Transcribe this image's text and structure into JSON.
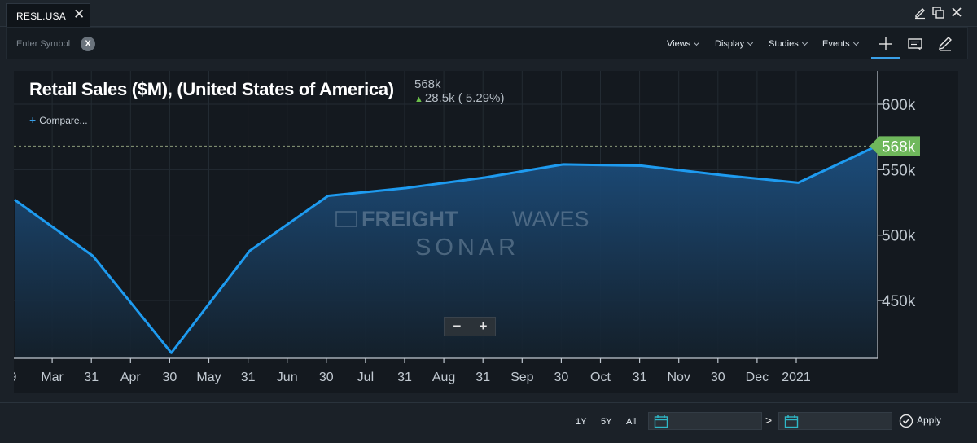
{
  "tab": {
    "label": "RESL.USA",
    "close": "✕"
  },
  "toolbar": {
    "symbol_placeholder": "Enter Symbol",
    "clear_label": "X",
    "menus": [
      "Views",
      "Display",
      "Studies",
      "Events"
    ]
  },
  "chart_header": {
    "title": "Retail Sales ($M), (United States of America)",
    "last_value": "568k",
    "change_arrow": "▲",
    "change": "28.5k ( 5.29%)",
    "compare_plus": "+",
    "compare_label": "Compare..."
  },
  "watermark": {
    "line1a": "FREIGHT",
    "line1b": "WAVES",
    "line2": "SONAR"
  },
  "zoom": {
    "minus": "−",
    "plus": "+"
  },
  "chart_data": {
    "type": "area",
    "x_labels": [
      "9",
      "Mar",
      "31",
      "Apr",
      "30",
      "May",
      "31",
      "Jun",
      "30",
      "Jul",
      "31",
      "Aug",
      "31",
      "Sep",
      "30",
      "Oct",
      "31",
      "Nov",
      "30",
      "Dec",
      "2021"
    ],
    "y_ticks": [
      "600k",
      "550k",
      "500k",
      "450k"
    ],
    "y_tick_values": [
      600000,
      550000,
      500000,
      450000
    ],
    "ylim": [
      405000,
      625000
    ],
    "series": [
      {
        "x": [
          "2020-01",
          "2020-02",
          "2020-03",
          "2020-04",
          "2020-05",
          "2020-06",
          "2020-07",
          "2020-08",
          "2020-09",
          "2020-10",
          "2020-11",
          "2020-12"
        ],
        "values": [
          527000,
          484000,
          410000,
          488000,
          530000,
          536000,
          544000,
          554000,
          553000,
          546000,
          540000,
          568000
        ]
      }
    ],
    "last_value_label": "568k",
    "last_value_line": 568000,
    "line_color": "#1e9bf0",
    "fill_color": "#1c4f80",
    "label_color": "#6fb85c",
    "grid": true
  },
  "footer": {
    "ranges": [
      "1Y",
      "5Y",
      "All"
    ],
    "arrow": ">",
    "apply_label": "Apply"
  },
  "colors": {
    "accent": "#3aa0e8",
    "up": "#6cc04a",
    "background": "#14191f"
  }
}
